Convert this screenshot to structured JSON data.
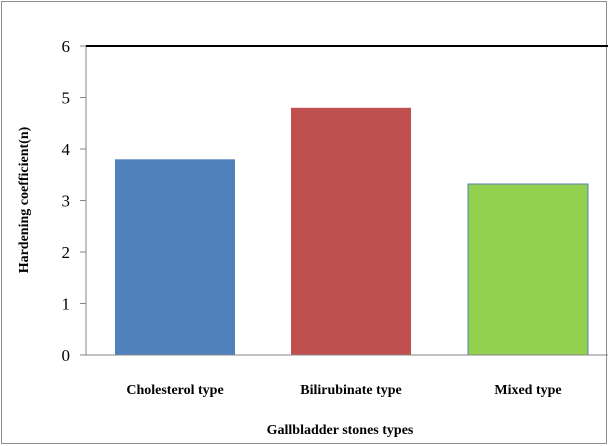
{
  "chart_data": {
    "type": "bar",
    "categories": [
      "Cholesterol type",
      "Bilirubinate type",
      "Mixed type"
    ],
    "values": [
      3.8,
      4.8,
      3.32
    ],
    "colors": [
      "#4f81bd",
      "#c0504d",
      "#92d050"
    ],
    "xlabel": "Gallbladder stones types",
    "ylabel": "Hardening coefficient(n)",
    "ylim": [
      0,
      6
    ],
    "yticks": [
      "0",
      "1",
      "2",
      "3",
      "4",
      "5",
      "6"
    ],
    "grid": false,
    "legend": "none"
  }
}
